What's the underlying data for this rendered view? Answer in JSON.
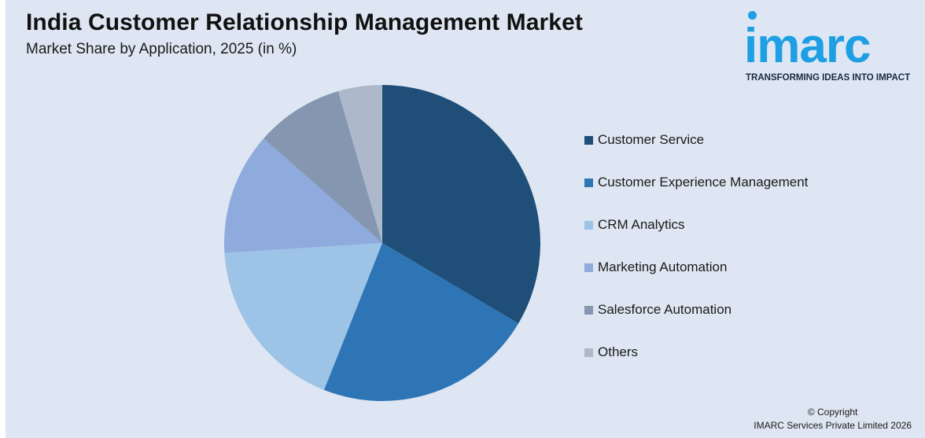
{
  "title": "India Customer Relationship Management Market",
  "subtitle": "Market Share by Application, 2025 (in %)",
  "logo": {
    "word": "imarc",
    "tagline": "TRANSFORMING IDEAS INTO IMPACT"
  },
  "copyright": {
    "line1": "© Copyright",
    "line2": "IMARC Services Private Limited 2026"
  },
  "chart_data": {
    "type": "pie",
    "title": "India Customer Relationship Management Market",
    "subtitle": "Market Share by Application, 2025 (in %)",
    "legend_position": "right",
    "slices": [
      {
        "label": "Customer Service",
        "value": 33.5,
        "color": "#1f4e79"
      },
      {
        "label": "Customer Experience Management",
        "value": 22.5,
        "color": "#2e75b6"
      },
      {
        "label": "CRM Analytics",
        "value": 18.0,
        "color": "#9dc3e6"
      },
      {
        "label": "Marketing Automation",
        "value": 12.5,
        "color": "#8faadc"
      },
      {
        "label": "Salesforce Automation",
        "value": 9.0,
        "color": "#8496b0"
      },
      {
        "label": "Others",
        "value": 4.5,
        "color": "#adb9ca"
      }
    ]
  }
}
